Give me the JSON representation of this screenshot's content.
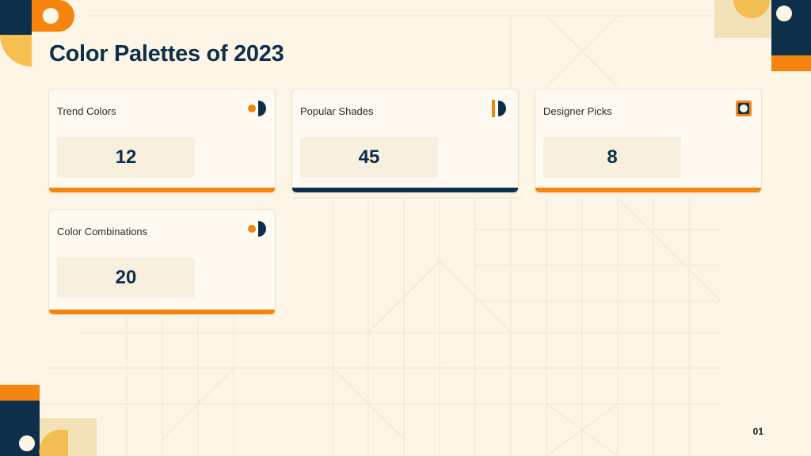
{
  "title": "Color Palettes of 2023",
  "colors": {
    "accent": "#f5850f",
    "navy": "#0d2f4a",
    "gold": "#f7be50",
    "sand": "#f3e1b8",
    "background": "#fdf6e7"
  },
  "cards": [
    {
      "label": "Trend Colors",
      "value": "12",
      "icon": "half-circle-dot-icon"
    },
    {
      "label": "Popular Shades",
      "value": "45",
      "icon": "bar-half-circle-icon"
    },
    {
      "label": "Designer Picks",
      "value": "8",
      "icon": "ring-square-icon"
    },
    {
      "label": "Color Combinations",
      "value": "20",
      "icon": "half-circle-dot-icon"
    }
  ],
  "page_number": "01"
}
